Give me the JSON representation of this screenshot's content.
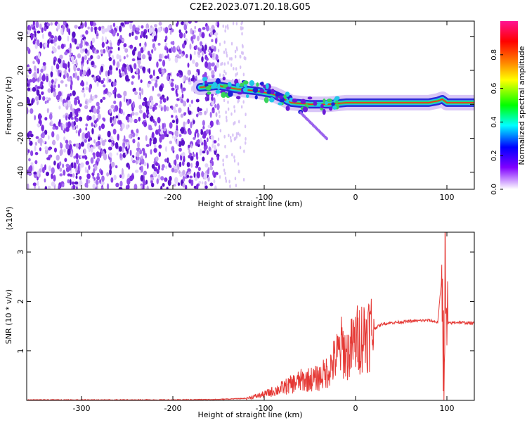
{
  "title": "C2E2.2023.071.20.18.G05",
  "colors": {
    "axis": "#000000",
    "snr_line": "#e53935",
    "scatter_purple": "#6a1bd6",
    "scatter_light": "#c9a8f0",
    "ridge_core": "#ff2a1a",
    "ridge_mid": "#2bd66b",
    "ridge_edge": "#1f1fd6"
  },
  "colorbar": {
    "label": "Normalized spectral amplitude",
    "ticks": [
      "0.0",
      "0.2",
      "0.4",
      "0.6",
      "0.8"
    ],
    "range": [
      0,
      1
    ],
    "gradient": [
      "#ff00ff",
      "#ff0000",
      "#ff8800",
      "#ffff00",
      "#00ff00",
      "#00ffff",
      "#0000ff",
      "#8000ff",
      "#ffffff"
    ]
  },
  "chart_data": [
    {
      "type": "heatmap",
      "title": "C2E2.2023.071.20.18.G05",
      "xlabel": "Height of straight line (km)",
      "ylabel": "Frequency (Hz)",
      "xlim": [
        -360,
        130
      ],
      "ylim": [
        -50,
        49
      ],
      "xticks": [
        -300,
        -200,
        -100,
        0,
        100
      ],
      "yticks": [
        -40,
        -20,
        0,
        20,
        40
      ],
      "colorbar_label": "Normalized spectral amplitude",
      "description_points": {
        "noise_region_x": [
          -360,
          -150
        ],
        "ridge": {
          "x": [
            -170,
            -150,
            -130,
            -110,
            -90,
            -70,
            -50,
            -30,
            -10,
            0,
            20,
            40,
            60,
            80,
            90,
            95,
            100,
            130
          ],
          "frequency": [
            10,
            11,
            9,
            8,
            6,
            1,
            0,
            0,
            1,
            1,
            1,
            1,
            1,
            1,
            2,
            3,
            1,
            1
          ]
        }
      }
    },
    {
      "type": "line",
      "xlabel": "Height of straight line (km)",
      "ylabel": "SNR (10 * v/v)",
      "y_multiplier": "(x10⁴)",
      "xlim": [
        -360,
        130
      ],
      "ylim": [
        0,
        3.4
      ],
      "xticks": [
        -300,
        -200,
        -100,
        0,
        100
      ],
      "yticks": [
        1,
        2,
        3
      ],
      "series": [
        {
          "x": [
            -360,
            -300,
            -250,
            -200,
            -150,
            -120,
            -100,
            -80,
            -60,
            -40,
            -30,
            -20,
            -15,
            -10,
            0,
            10,
            20,
            30,
            40,
            60,
            80,
            90,
            95,
            97,
            98,
            99,
            100,
            110,
            130
          ],
          "y": [
            0.01,
            0.01,
            0.01,
            0.01,
            0.02,
            0.04,
            0.12,
            0.25,
            0.4,
            0.45,
            0.6,
            0.9,
            1.1,
            0.9,
            1.2,
            1.35,
            1.45,
            1.55,
            1.57,
            1.6,
            1.62,
            1.58,
            2.6,
            0.1,
            3.3,
            1.0,
            1.55,
            1.58,
            1.56
          ]
        }
      ]
    }
  ]
}
